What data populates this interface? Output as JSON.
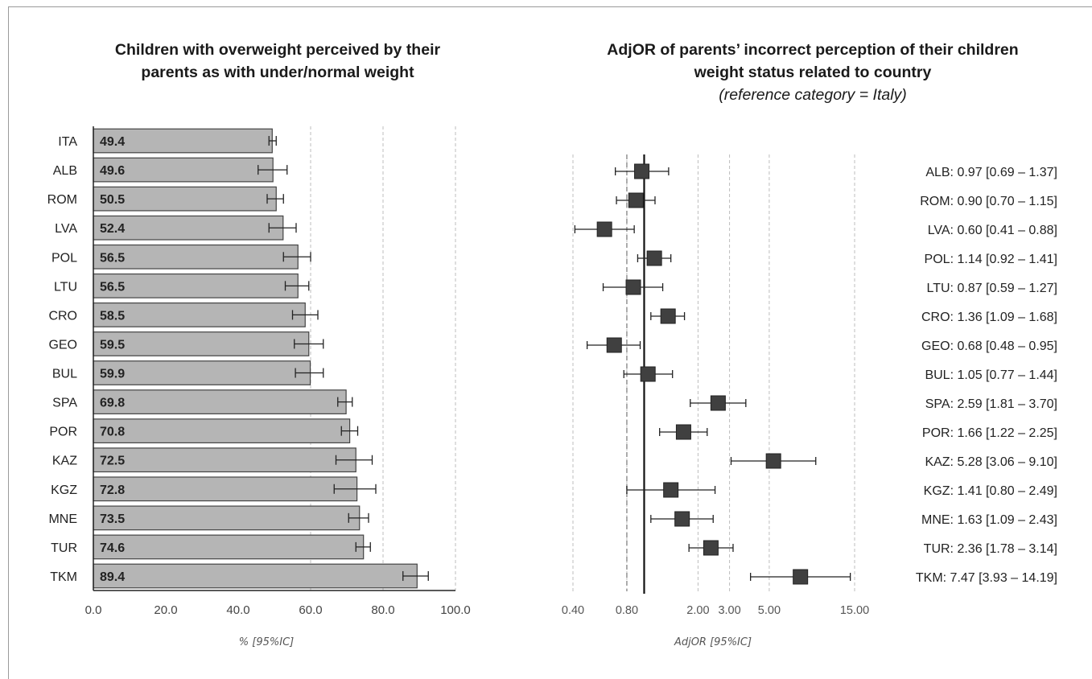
{
  "left_chart_title_line1": "Children with overweight perceived by their",
  "left_chart_title_line2": "parents as with under/normal weight",
  "right_chart_title_line1": "AdjOR of parents’ incorrect perception of their children",
  "right_chart_title_line2": "weight status related to country",
  "right_chart_subtitle": "(reference category = Italy)",
  "colors": {
    "bar_fill": "#b5b5b5",
    "bar_stroke": "#444444",
    "marker": "#404040",
    "grid": "#bdbdbd",
    "reference_line": "#111111"
  },
  "chart_data": [
    {
      "type": "bar",
      "orientation": "horizontal",
      "xlabel": "% [95%IC]",
      "xlim": [
        0,
        100
      ],
      "xticks": [
        "0.0",
        "20.0",
        "40.0",
        "60.0",
        "80.0",
        "100.0"
      ],
      "grid": "vertical dashed at 60, 80, 100",
      "categories": [
        "ITA",
        "ALB",
        "ROM",
        "LVA",
        "POL",
        "LTU",
        "CRO",
        "GEO",
        "BUL",
        "SPA",
        "POR",
        "KAZ",
        "KGZ",
        "MNE",
        "TUR",
        "TKM"
      ],
      "value_labels": [
        "49.4",
        "49.6",
        "50.5",
        "52.4",
        "56.5",
        "56.5",
        "58.5",
        "59.5",
        "59.9",
        "69.8",
        "70.8",
        "72.5",
        "72.8",
        "73.5",
        "74.6",
        "89.4"
      ],
      "values": [
        49.4,
        49.6,
        50.5,
        52.4,
        56.5,
        56.5,
        58.5,
        59.5,
        59.9,
        69.8,
        70.8,
        72.5,
        72.8,
        73.5,
        74.6,
        89.4
      ],
      "ci_low": [
        48.5,
        45.5,
        48.0,
        48.5,
        52.5,
        53.0,
        55.0,
        55.5,
        55.8,
        67.5,
        68.5,
        67.0,
        66.5,
        70.5,
        72.5,
        85.5
      ],
      "ci_high": [
        50.5,
        53.5,
        52.5,
        56.0,
        60.0,
        59.5,
        62.0,
        63.5,
        63.5,
        71.5,
        73.0,
        77.0,
        78.0,
        76.0,
        76.5,
        92.5
      ]
    },
    {
      "type": "scatter",
      "subtype": "forest_plot",
      "xlabel": "AdjOR [95%IC]",
      "xscale": "log",
      "xticks": [
        0.4,
        0.8,
        2.0,
        3.0,
        5.0,
        15.0
      ],
      "xtick_labels": [
        "0.40",
        "0.80",
        "2.00",
        "3.00",
        "5.00",
        "15.00"
      ],
      "reference_line": 1.0,
      "grid": "vertical dashed at 0.40, 0.80, 2.00, 3.00, 5.00, 15.00",
      "labels": [
        "ALB: 0.97 [0.69 – 1.37]",
        "ROM: 0.90 [0.70 – 1.15]",
        "LVA: 0.60 [0.41 – 0.88]",
        "POL: 1.14 [0.92 – 1.41]",
        "LTU: 0.87 [0.59 – 1.27]",
        "CRO: 1.36 [1.09 – 1.68]",
        "GEO: 0.68 [0.48 – 0.95]",
        "BUL: 1.05 [0.77 – 1.44]",
        "SPA: 2.59 [1.81 – 3.70]",
        "POR: 1.66 [1.22 – 2.25]",
        "KAZ: 5.28 [3.06 – 9.10]",
        "KGZ: 1.41 [0.80 – 2.49]",
        "MNE: 1.63 [1.09 – 2.43]",
        "TUR: 2.36 [1.78 – 3.14]",
        "TKM: 7.47 [3.93 – 14.19]"
      ],
      "or": [
        0.97,
        0.9,
        0.6,
        1.14,
        0.87,
        1.36,
        0.68,
        1.05,
        2.59,
        1.66,
        5.28,
        1.41,
        1.63,
        2.36,
        7.47
      ],
      "low": [
        0.69,
        0.7,
        0.41,
        0.92,
        0.59,
        1.09,
        0.48,
        0.77,
        1.81,
        1.22,
        3.06,
        0.8,
        1.09,
        1.78,
        3.93
      ],
      "high": [
        1.37,
        1.15,
        0.88,
        1.41,
        1.27,
        1.68,
        0.95,
        1.44,
        3.7,
        2.25,
        9.1,
        2.49,
        2.43,
        3.14,
        14.19
      ]
    }
  ]
}
